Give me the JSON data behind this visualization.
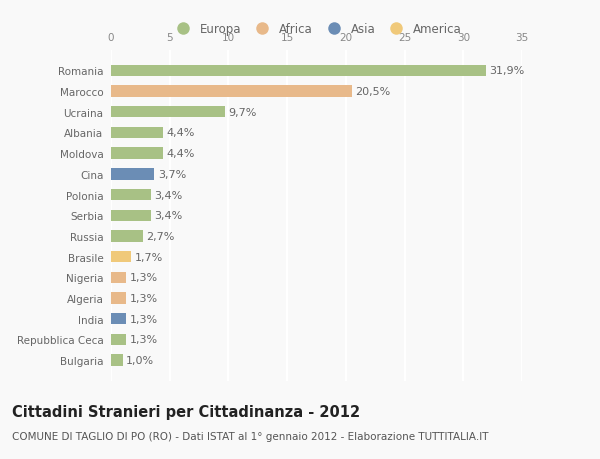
{
  "countries": [
    "Romania",
    "Marocco",
    "Ucraina",
    "Albania",
    "Moldova",
    "Cina",
    "Polonia",
    "Serbia",
    "Russia",
    "Brasile",
    "Nigeria",
    "Algeria",
    "India",
    "Repubblica Ceca",
    "Bulgaria"
  ],
  "values": [
    31.9,
    20.5,
    9.7,
    4.4,
    4.4,
    3.7,
    3.4,
    3.4,
    2.7,
    1.7,
    1.3,
    1.3,
    1.3,
    1.3,
    1.0
  ],
  "labels": [
    "31,9%",
    "20,5%",
    "9,7%",
    "4,4%",
    "4,4%",
    "3,7%",
    "3,4%",
    "3,4%",
    "2,7%",
    "1,7%",
    "1,3%",
    "1,3%",
    "1,3%",
    "1,3%",
    "1,0%"
  ],
  "colors": [
    "#a8c185",
    "#e8b98a",
    "#a8c185",
    "#a8c185",
    "#a8c185",
    "#6b8db5",
    "#a8c185",
    "#a8c185",
    "#a8c185",
    "#f0c97a",
    "#e8b98a",
    "#e8b98a",
    "#6b8db5",
    "#a8c185",
    "#a8c185"
  ],
  "legend_labels": [
    "Europa",
    "Africa",
    "Asia",
    "America"
  ],
  "legend_colors": [
    "#a8c185",
    "#e8b98a",
    "#6b8db5",
    "#f0c97a"
  ],
  "xlim": [
    0,
    35
  ],
  "xticks": [
    0,
    5,
    10,
    15,
    20,
    25,
    30,
    35
  ],
  "title": "Cittadini Stranieri per Cittadinanza - 2012",
  "subtitle": "COMUNE DI TAGLIO DI PO (RO) - Dati ISTAT al 1° gennaio 2012 - Elaborazione TUTTITALIA.IT",
  "bg_color": "#f9f9f9",
  "plot_bg_color": "#f9f9f9",
  "grid_color": "#ffffff",
  "bar_height": 0.55,
  "title_fontsize": 10.5,
  "subtitle_fontsize": 7.5,
  "label_fontsize": 8,
  "tick_fontsize": 7.5,
  "legend_fontsize": 8.5,
  "ytick_fontsize": 7.5
}
